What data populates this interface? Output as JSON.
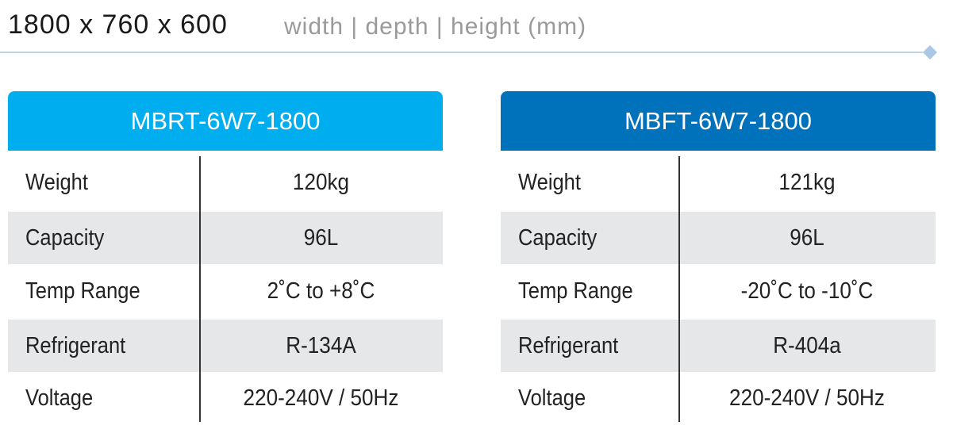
{
  "header": {
    "dimensions": "1800 x 760 x 600",
    "dimension_labels": "width | depth | height (mm)"
  },
  "tables": [
    {
      "title": "MBRT-6W7-1800",
      "color": "#00aeef",
      "rows": [
        [
          "Weight",
          "120kg"
        ],
        [
          "Capacity",
          "96L"
        ],
        [
          "Temp Range",
          "2˚C to +8˚C"
        ],
        [
          "Refrigerant",
          "R-134A"
        ],
        [
          "Voltage",
          "220-240V / 50Hz"
        ]
      ]
    },
    {
      "title": "MBFT-6W7-1800",
      "color": "#0072bc",
      "rows": [
        [
          "Weight",
          "121kg"
        ],
        [
          "Capacity",
          "96L"
        ],
        [
          "Temp Range",
          "-20˚C to -10˚C"
        ],
        [
          "Refrigerant",
          "R-404a"
        ],
        [
          "Voltage",
          "220-240V / 50Hz"
        ]
      ]
    }
  ]
}
